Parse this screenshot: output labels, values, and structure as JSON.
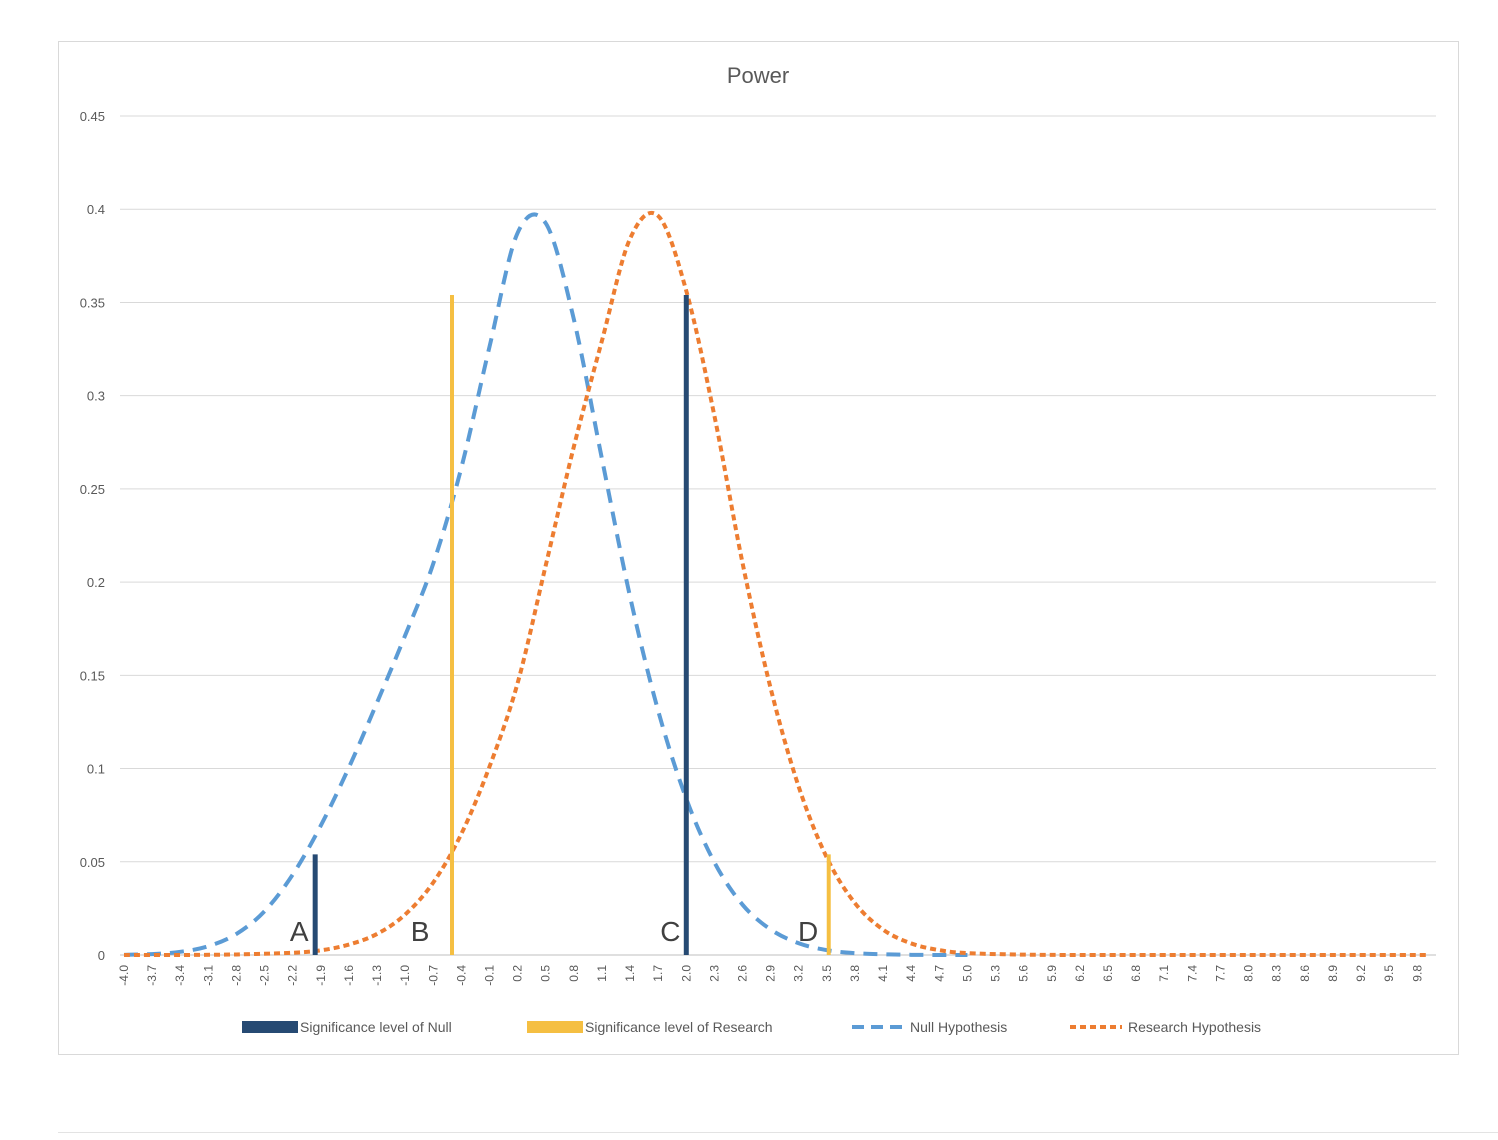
{
  "chart_data": {
    "type": "line",
    "title": "Power",
    "xlabel": "",
    "ylabel": "",
    "ylim": [
      0,
      0.45
    ],
    "yticks": [
      "0",
      "0.05",
      "0.1",
      "0.15",
      "0.2",
      "0.25",
      "0.3",
      "0.35",
      "0.4",
      "0.45"
    ],
    "xlim": [
      -4.0,
      10.0
    ],
    "xticks": [
      "-4.0",
      "-3.7",
      "-3.4",
      "-3.1",
      "-2.8",
      "-2.5",
      "-2.2",
      "-1.9",
      "-1.6",
      "-1.3",
      "-1.0",
      "-0.7",
      "-0.4",
      "-0.1",
      "0.2",
      "0.5",
      "0.8",
      "1.1",
      "1.4",
      "1.7",
      "2.0",
      "2.3",
      "2.6",
      "2.9",
      "3.2",
      "3.5",
      "3.8",
      "4.1",
      "4.4",
      "4.7",
      "5.0",
      "5.3",
      "5.6",
      "5.9",
      "6.2",
      "6.5",
      "6.8",
      "7.1",
      "7.4",
      "7.7",
      "8.0",
      "8.3",
      "8.6",
      "8.9",
      "9.2",
      "9.5",
      "9.8"
    ],
    "grid": true,
    "legend_position": "bottom",
    "series": [
      {
        "name": "Significance level of Null",
        "kind": "vertical-bars",
        "color": "#264a73",
        "bars": [
          {
            "x": -1.96,
            "y": 0.054
          },
          {
            "x": 2.0,
            "y": 0.354
          }
        ]
      },
      {
        "name": "Significance level of Research",
        "kind": "vertical-bars",
        "color": "#f5bf42",
        "bars": [
          {
            "x": -0.5,
            "y": 0.354
          },
          {
            "x": 3.52,
            "y": 0.054
          }
        ]
      },
      {
        "name": "Null Hypothesis",
        "kind": "dashed-line",
        "color": "#5b9bd5",
        "x": [
          -4.0,
          -3.7,
          -3.4,
          -3.1,
          -2.8,
          -2.5,
          -2.2,
          -1.9,
          -1.6,
          -1.3,
          -1.0,
          -0.7,
          -0.4,
          -0.1,
          0.2,
          0.5,
          0.8,
          1.1,
          1.4,
          1.7,
          2.0,
          2.3,
          2.6,
          2.9,
          3.2,
          3.5,
          3.8,
          4.1,
          4.4,
          4.7,
          5.0
        ],
        "y": [
          0.0001,
          0.0005,
          0.0017,
          0.0047,
          0.0113,
          0.0235,
          0.0431,
          0.0694,
          0.1006,
          0.1354,
          0.1714,
          0.2099,
          0.2614,
          0.3262,
          0.3873,
          0.3925,
          0.341,
          0.2661,
          0.1922,
          0.131,
          0.0838,
          0.0497,
          0.027,
          0.0137,
          0.0063,
          0.0026,
          0.001,
          0.0004,
          0.0001,
          0.0,
          0.0
        ]
      },
      {
        "name": "Research Hypothesis",
        "kind": "dashed-line",
        "color": "#ed7d31",
        "x": [
          -4.0,
          -3.4,
          -2.8,
          -2.2,
          -1.9,
          -1.6,
          -1.3,
          -1.0,
          -0.7,
          -0.4,
          -0.1,
          0.2,
          0.5,
          0.8,
          1.1,
          1.4,
          1.7,
          2.0,
          2.3,
          2.6,
          2.9,
          3.2,
          3.5,
          3.8,
          4.1,
          4.4,
          4.7,
          5.0,
          5.6,
          6.2,
          7.0,
          8.0,
          9.0,
          9.9
        ],
        "y": [
          0.0,
          0.0,
          0.0003,
          0.0012,
          0.0025,
          0.0056,
          0.0113,
          0.0217,
          0.0389,
          0.065,
          0.101,
          0.1458,
          0.2089,
          0.2726,
          0.3295,
          0.3842,
          0.3964,
          0.3562,
          0.2892,
          0.2103,
          0.1431,
          0.0902,
          0.0522,
          0.0278,
          0.0136,
          0.0062,
          0.0026,
          0.001,
          0.0002,
          0.0,
          0.0,
          0.0,
          0.0,
          0.0
        ]
      }
    ],
    "annotations": [
      {
        "text": "A",
        "x": -2.13,
        "y": 0.0
      },
      {
        "text": "B",
        "x": -0.84,
        "y": 0.0
      },
      {
        "text": "C",
        "x": 1.83,
        "y": 0.0
      },
      {
        "text": "D",
        "x": 3.3,
        "y": 0.0
      }
    ]
  }
}
